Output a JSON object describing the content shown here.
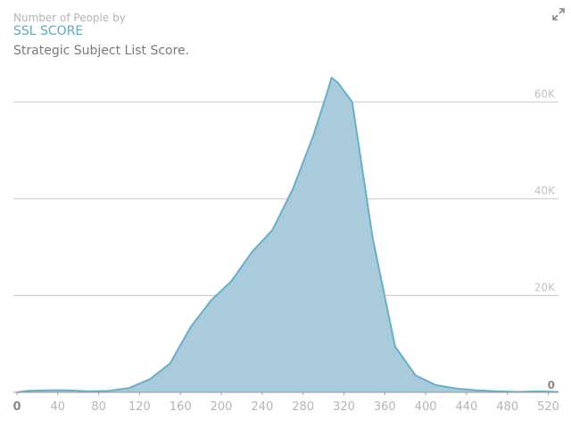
{
  "header": {
    "overline": "Number of People by",
    "title": "SSL SCORE",
    "description": "Strategic Subject List Score."
  },
  "controls": {
    "expand_icon": "expand-icon"
  },
  "chart_data": {
    "type": "area",
    "title": "SSL SCORE",
    "xlabel": "",
    "ylabel": "",
    "xlim": [
      0,
      530
    ],
    "ylim": [
      0,
      70000
    ],
    "x_ticks": [
      "0",
      "40",
      "80",
      "120",
      "160",
      "200",
      "240",
      "280",
      "320",
      "360",
      "400",
      "440",
      "480",
      "520"
    ],
    "y_ticks": [
      "0",
      "20K",
      "40K",
      "60K"
    ],
    "grid": true,
    "series": [
      {
        "color": "#6aaec8",
        "fill": "#a9cbdb",
        "x": [
          0,
          10,
          30,
          50,
          70,
          90,
          110,
          130,
          150,
          170,
          190,
          210,
          230,
          250,
          270,
          290,
          303,
          308,
          314,
          328,
          348,
          370,
          390,
          410,
          430,
          450,
          470,
          490,
          510,
          530
        ],
        "y": [
          0,
          300,
          400,
          400,
          200,
          300,
          900,
          2700,
          6000,
          13500,
          19000,
          23000,
          29000,
          33500,
          42000,
          53000,
          61500,
          65000,
          64000,
          60000,
          32000,
          9500,
          3500,
          1500,
          800,
          400,
          200,
          100,
          200,
          100
        ]
      }
    ]
  }
}
